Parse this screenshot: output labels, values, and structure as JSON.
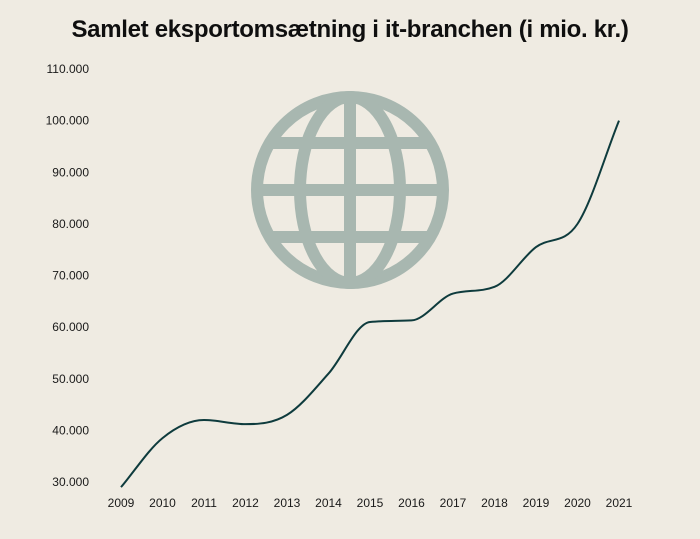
{
  "page": {
    "title": "Samlet eksportomsætning i it-branchen (i mio. kr.)"
  },
  "chart_data": {
    "type": "line",
    "title": "Samlet eksportomsætning i it-branchen (i mio. kr.)",
    "xlabel": "",
    "ylabel": "",
    "x": [
      2009,
      2010,
      2011,
      2012,
      2013,
      2014,
      2015,
      2016,
      2017,
      2018,
      2019,
      2020,
      2021
    ],
    "x_tick_labels": [
      "2009",
      "2010",
      "2011",
      "2012",
      "2013",
      "2014",
      "2015",
      "2016",
      "2017",
      "2018",
      "2019",
      "2020",
      "2021"
    ],
    "series": [
      {
        "values": [
          29000,
          38500,
          42000,
          41200,
          43000,
          51000,
          61000,
          61300,
          66500,
          67800,
          75500,
          80000,
          100000
        ]
      }
    ],
    "ylim": [
      30000,
      110000
    ],
    "y_ticks": [
      30000,
      40000,
      50000,
      60000,
      70000,
      80000,
      90000,
      100000,
      110000
    ],
    "y_tick_labels": [
      "30.000",
      "40.000",
      "50.000",
      "60.000",
      "70.000",
      "80.000",
      "90.000",
      "100.000",
      "110.000"
    ],
    "grid": false,
    "legend": "none",
    "colors": {
      "line": "#0e3b3d",
      "globe": "#a8b7b0",
      "background": "#efebe2"
    },
    "decoration_icon": "globe-icon"
  }
}
